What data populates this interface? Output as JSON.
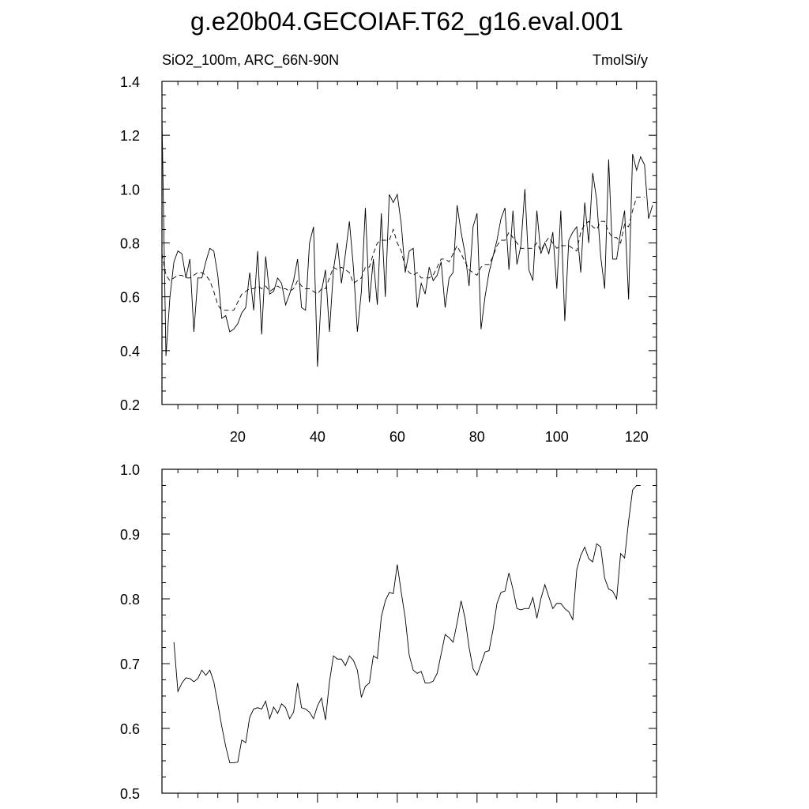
{
  "title": "g.e20b04.GECOIAF.T62_g16.eval.001",
  "left_label": "SiO2_100m, ARC_66N-90N",
  "right_label": "TmolSi/y",
  "chart_data": [
    {
      "type": "line",
      "panel": "top",
      "xlim": [
        1,
        125
      ],
      "ylim": [
        0.2,
        1.4
      ],
      "x_ticks": [
        20,
        40,
        60,
        80,
        100,
        120
      ],
      "y_ticks": [
        "0.2",
        "0.4",
        "0.6",
        "0.8",
        "1.0",
        "1.2",
        "1.4"
      ],
      "x_start": 1,
      "series": [
        {
          "style": "solid",
          "values": [
            1.27,
            0.38,
            0.6,
            0.73,
            0.77,
            0.76,
            0.67,
            0.74,
            0.47,
            0.67,
            0.67,
            0.73,
            0.78,
            0.77,
            0.68,
            0.52,
            0.53,
            0.47,
            0.48,
            0.5,
            0.54,
            0.56,
            0.69,
            0.55,
            0.77,
            0.46,
            0.75,
            0.61,
            0.62,
            0.67,
            0.65,
            0.57,
            0.61,
            0.66,
            0.74,
            0.56,
            0.55,
            0.8,
            0.86,
            0.34,
            0.62,
            0.7,
            0.47,
            0.7,
            0.8,
            0.65,
            0.76,
            0.88,
            0.71,
            0.47,
            0.62,
            0.93,
            0.58,
            0.74,
            0.57,
            0.91,
            0.6,
            0.98,
            0.95,
            0.98,
            0.87,
            0.69,
            0.77,
            0.78,
            0.56,
            0.65,
            0.61,
            0.71,
            0.66,
            0.68,
            0.73,
            0.56,
            0.67,
            0.69,
            0.94,
            0.84,
            0.76,
            0.64,
            0.86,
            0.91,
            0.48,
            0.6,
            0.69,
            0.75,
            0.81,
            0.89,
            0.93,
            0.7,
            0.92,
            0.72,
            0.79,
            1.0,
            0.7,
            0.66,
            0.92,
            0.76,
            0.8,
            0.76,
            0.84,
            0.63,
            0.92,
            0.51,
            0.81,
            0.84,
            0.86,
            0.69,
            0.95,
            0.8,
            1.06,
            0.96,
            0.75,
            0.63,
            1.11,
            0.74,
            0.74,
            0.84,
            0.92,
            0.59,
            1.13,
            1.07,
            1.12,
            1.09,
            0.89,
            0.94
          ]
        },
        {
          "style": "dashed",
          "values": [
            0.76,
            0.68,
            0.66,
            0.67,
            0.68,
            0.68,
            0.67,
            0.67,
            0.68,
            0.69,
            0.69,
            0.68,
            0.66,
            0.62,
            0.57,
            0.55,
            0.55,
            0.55,
            0.55,
            0.58,
            0.61,
            0.62,
            0.63,
            0.63,
            0.64,
            0.63,
            0.64,
            0.62,
            0.63,
            0.64,
            0.63,
            0.63,
            0.62,
            0.63,
            0.66,
            0.64,
            0.63,
            0.63,
            0.62,
            0.61,
            0.63,
            0.63,
            0.67,
            0.71,
            0.7,
            0.71,
            0.7,
            0.69,
            0.65,
            0.66,
            0.67,
            0.71,
            0.71,
            0.76,
            0.8,
            0.81,
            0.81,
            0.81,
            0.85,
            0.8,
            0.77,
            0.71,
            0.69,
            0.68,
            0.69,
            0.67,
            0.67,
            0.67,
            0.68,
            0.71,
            0.74,
            0.74,
            0.73,
            0.76,
            0.79,
            0.76,
            0.73,
            0.7,
            0.69,
            0.68,
            0.71,
            0.72,
            0.72,
            0.75,
            0.79,
            0.81,
            0.81,
            0.84,
            0.82,
            0.8,
            0.78,
            0.78,
            0.78,
            0.78,
            0.8,
            0.77,
            0.8,
            0.82,
            0.8,
            0.78,
            0.79,
            0.79,
            0.79,
            0.78,
            0.77,
            0.84,
            0.87,
            0.88,
            0.86,
            0.85,
            0.88,
            0.88,
            0.84,
            0.82,
            0.82,
            0.8,
            0.87,
            0.86,
            0.92,
            0.97,
            0.97,
            0.97
          ]
        }
      ]
    },
    {
      "type": "line",
      "panel": "bottom",
      "xlim": [
        1,
        125
      ],
      "ylim": [
        0.5,
        1.0
      ],
      "x_ticks": [
        20,
        40,
        60,
        80,
        100,
        120
      ],
      "y_ticks": [
        "0.5",
        "0.6",
        "0.7",
        "0.8",
        "0.9",
        "1.0"
      ],
      "x_start": 4,
      "series": [
        {
          "style": "solid",
          "values": [
            0.733,
            0.657,
            0.67,
            0.678,
            0.677,
            0.672,
            0.677,
            0.69,
            0.682,
            0.69,
            0.672,
            0.638,
            0.603,
            0.572,
            0.547,
            0.547,
            0.548,
            0.582,
            0.578,
            0.617,
            0.63,
            0.632,
            0.63,
            0.642,
            0.615,
            0.633,
            0.623,
            0.638,
            0.632,
            0.615,
            0.625,
            0.67,
            0.632,
            0.63,
            0.625,
            0.615,
            0.635,
            0.647,
            0.613,
            0.672,
            0.712,
            0.707,
            0.707,
            0.697,
            0.712,
            0.705,
            0.69,
            0.648,
            0.665,
            0.67,
            0.712,
            0.708,
            0.772,
            0.797,
            0.81,
            0.808,
            0.853,
            0.81,
            0.77,
            0.713,
            0.69,
            0.685,
            0.688,
            0.67,
            0.67,
            0.673,
            0.685,
            0.715,
            0.745,
            0.74,
            0.733,
            0.763,
            0.797,
            0.77,
            0.725,
            0.692,
            0.682,
            0.7,
            0.718,
            0.72,
            0.752,
            0.793,
            0.81,
            0.812,
            0.84,
            0.815,
            0.785,
            0.783,
            0.785,
            0.785,
            0.802,
            0.77,
            0.8,
            0.822,
            0.803,
            0.785,
            0.793,
            0.793,
            0.785,
            0.78,
            0.768,
            0.845,
            0.867,
            0.88,
            0.862,
            0.857,
            0.885,
            0.88,
            0.832,
            0.815,
            0.812,
            0.8,
            0.87,
            0.863,
            0.92,
            0.968,
            0.975,
            0.975
          ]
        }
      ]
    }
  ]
}
